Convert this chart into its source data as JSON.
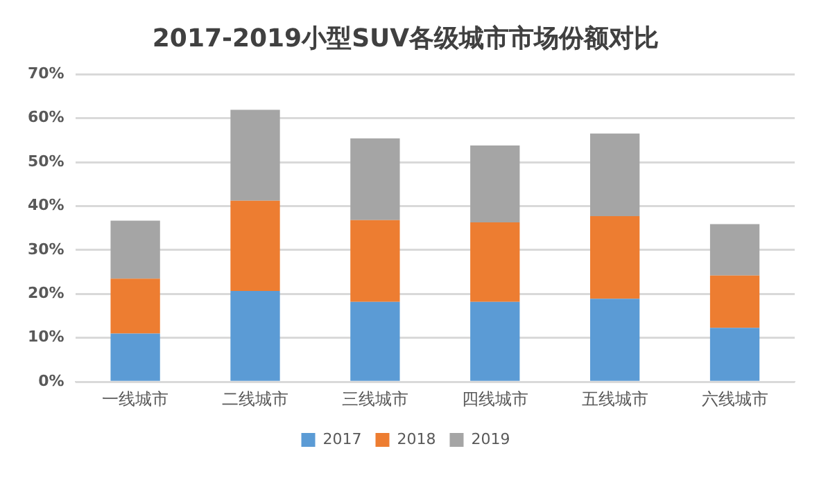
{
  "chart_data": {
    "type": "bar",
    "title": "2017-2019小型SUV各级城市市场份额对比",
    "categories": [
      "一线城市",
      "二线城市",
      "三线城市",
      "四线城市",
      "五线城市",
      "六线城市"
    ],
    "stacked": true,
    "series": [
      {
        "name": "2017",
        "color": "#5b9bd5",
        "values": [
          11,
          20.7,
          18.2,
          18.2,
          18.9,
          12.3
        ]
      },
      {
        "name": "2018",
        "color": "#ed7d31",
        "values": [
          12.5,
          20.5,
          18.6,
          18.1,
          18.8,
          11.9
        ]
      },
      {
        "name": "2019",
        "color": "#a5a5a5",
        "values": [
          13.2,
          20.7,
          18.6,
          17.5,
          18.8,
          11.7
        ]
      }
    ],
    "ylim": [
      0,
      70
    ],
    "yticks": [
      {
        "value": 0,
        "label": "0%"
      },
      {
        "value": 10,
        "label": "10%"
      },
      {
        "value": 20,
        "label": "20%"
      },
      {
        "value": 30,
        "label": "30%"
      },
      {
        "value": 40,
        "label": "40%"
      },
      {
        "value": 50,
        "label": "50%"
      },
      {
        "value": 60,
        "label": "60%"
      },
      {
        "value": 70,
        "label": "70%"
      }
    ],
    "grid": "y",
    "legend": "bottom"
  }
}
